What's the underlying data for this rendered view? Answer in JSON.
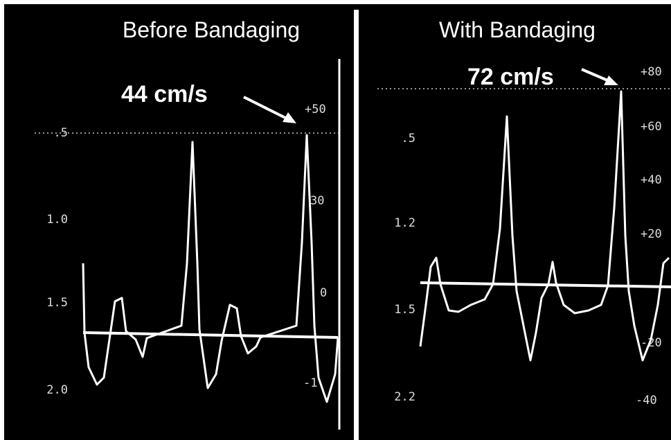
{
  "panels": [
    {
      "title": "Before Bandaging",
      "annotation": "44 cm/s",
      "left_scale": [
        ".5",
        "1.0",
        "1.5",
        "2.0"
      ],
      "right_scale": [
        "+50",
        "30",
        "0",
        "-1"
      ]
    },
    {
      "title": "With Bandaging",
      "annotation": "72 cm/s",
      "left_scale": [
        ".5",
        "1.2",
        "1.5",
        "2.2"
      ],
      "right_scale": [
        "+80",
        "+60",
        "+40",
        "+20",
        "-20",
        "-40"
      ]
    }
  ]
}
